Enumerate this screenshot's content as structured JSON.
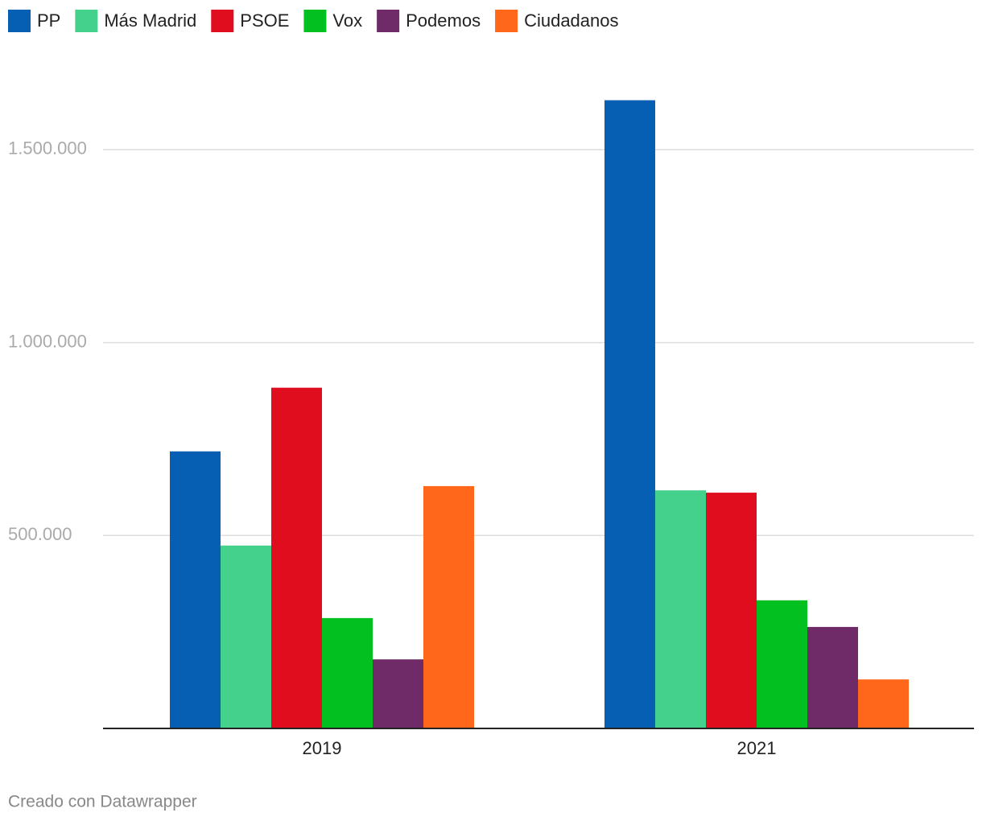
{
  "chart_data": {
    "type": "bar",
    "categories": [
      "2019",
      "2021"
    ],
    "series": [
      {
        "name": "PP",
        "color": "#065fb3",
        "values": [
          718000,
          1628000
        ]
      },
      {
        "name": "Más Madrid",
        "color": "#44d18c",
        "values": [
          474000,
          617000
        ]
      },
      {
        "name": "PSOE",
        "color": "#e00d1e",
        "values": [
          883000,
          611000
        ]
      },
      {
        "name": "Vox",
        "color": "#01c01f",
        "values": [
          286000,
          332000
        ]
      },
      {
        "name": "Podemos",
        "color": "#6f2b67",
        "values": [
          179000,
          263000
        ]
      },
      {
        "name": "Ciudadanos",
        "color": "#ff671b",
        "values": [
          628000,
          127000
        ]
      }
    ],
    "ylim": [
      0,
      1700000
    ],
    "yticks": [
      {
        "value": 500000,
        "label": "500.000"
      },
      {
        "value": 1000000,
        "label": "1.000.000"
      },
      {
        "value": 1500000,
        "label": "1.500.000"
      }
    ],
    "grid": true,
    "legend": "top",
    "footer": "Creado con Datawrapper"
  }
}
